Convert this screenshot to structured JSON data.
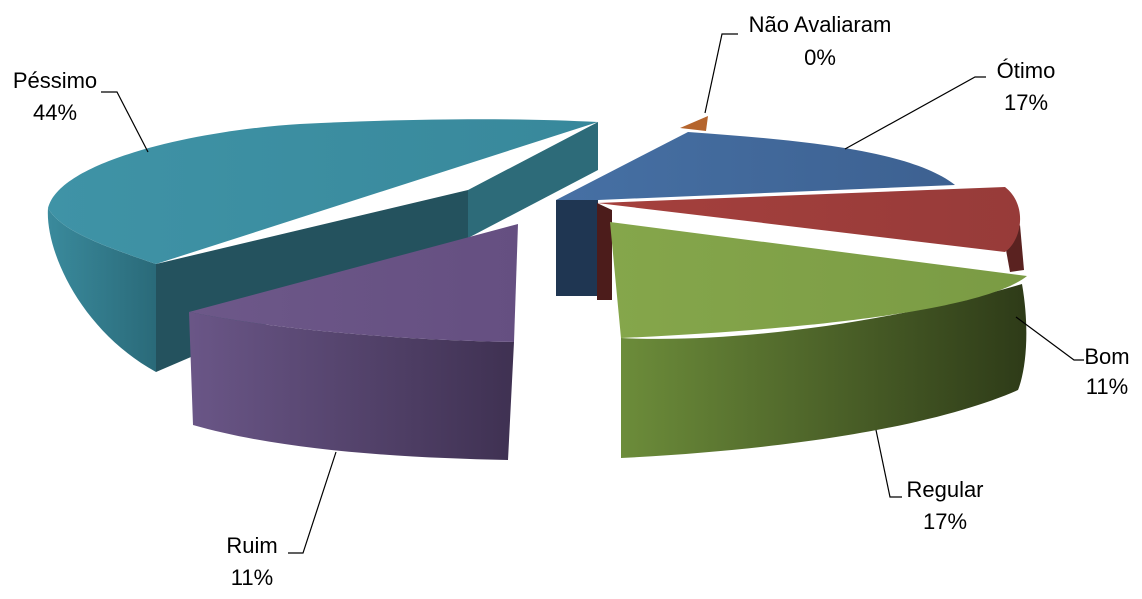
{
  "chart_data": {
    "type": "pie",
    "style": "3d-exploded",
    "title": "",
    "categories": [
      "Não Avaliaram",
      "Ótimo",
      "Bom",
      "Regular",
      "Ruim",
      "Péssimo"
    ],
    "values": [
      0,
      17,
      11,
      17,
      11,
      44
    ],
    "value_labels": [
      "0%",
      "17%",
      "11%",
      "17%",
      "11%",
      "44%"
    ],
    "colors": [
      "#b5652d",
      "#3f6596",
      "#983c3a",
      "#7a9a44",
      "#675283",
      "#3a899d"
    ],
    "legend": "none",
    "data_labels": "outside-with-leader-lines"
  }
}
